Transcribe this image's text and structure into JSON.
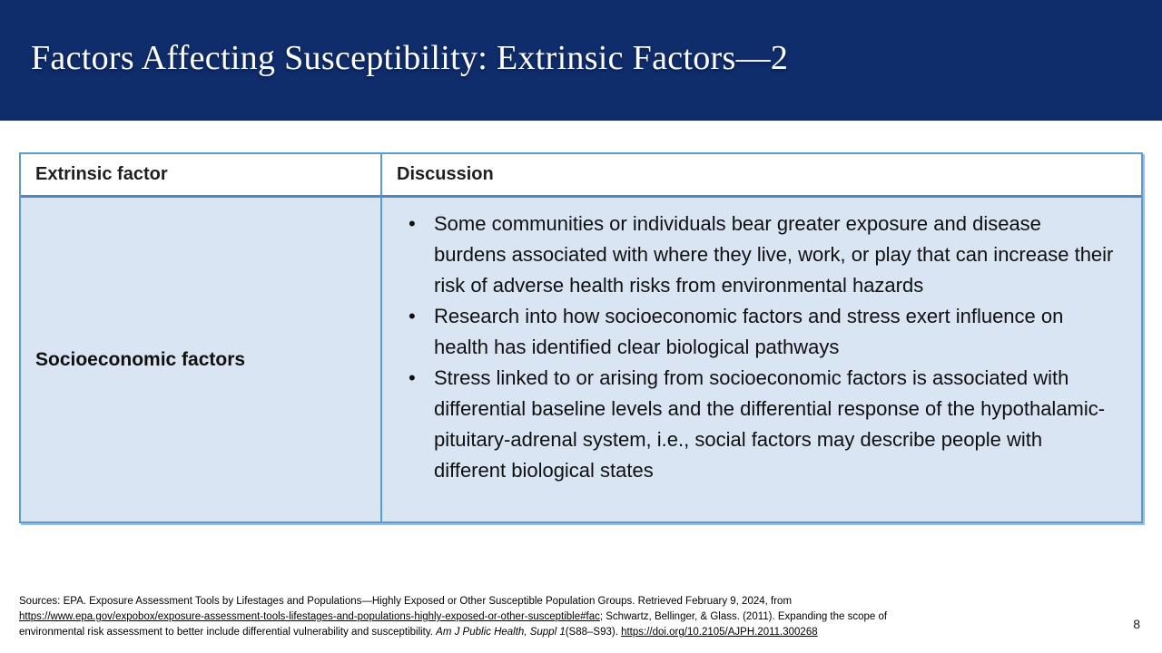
{
  "slide": {
    "title": "Factors Affecting Susceptibility: Extrinsic Factors—2",
    "page_number": "8"
  },
  "table": {
    "headers": [
      "Extrinsic factor",
      "Discussion"
    ],
    "row": {
      "factor": "Socioeconomic factors",
      "bullets": [
        "Some communities or individuals bear greater exposure and disease burdens associated with where they live, work, or play that can increase their risk of adverse health risks from environmental hazards",
        "Research into how socioeconomic factors and stress exert influence on health has identified clear biological pathways",
        "Stress linked to or arising from socioeconomic factors is associated with differential baseline levels and the differential response of the hypothalamic-pituitary-adrenal system, i.e., social factors may describe people with different biological states"
      ]
    }
  },
  "footer": {
    "line1": "Sources: EPA. Exposure Assessment Tools by Lifestages and Populations—Highly Exposed or Other Susceptible Population Groups. Retrieved February 9, 2024, from",
    "link1": "https://www.epa.gov/expobox/exposure-assessment-tools-lifestages-and-populations-highly-exposed-or-other-susceptible#fac",
    "line2_after_link": "; Schwartz, Bellinger, & Glass. (2011). Expanding the scope of",
    "line3_before_journal": "environmental risk assessment to better include differential vulnerability and susceptibility. ",
    "journal": "Am J Public Health, Suppl 1",
    "line3_after_journal": "(S88–S93). ",
    "link2": "https://doi.org/10.2105/AJPH.2011.300268"
  },
  "colors": {
    "header_navy": "#0f2c6b",
    "table_border_blue": "#5b9bd5",
    "header_underline_blue": "#4e86c0",
    "cell_light_blue": "#d9e5f3",
    "title_text": "#ffffff"
  }
}
